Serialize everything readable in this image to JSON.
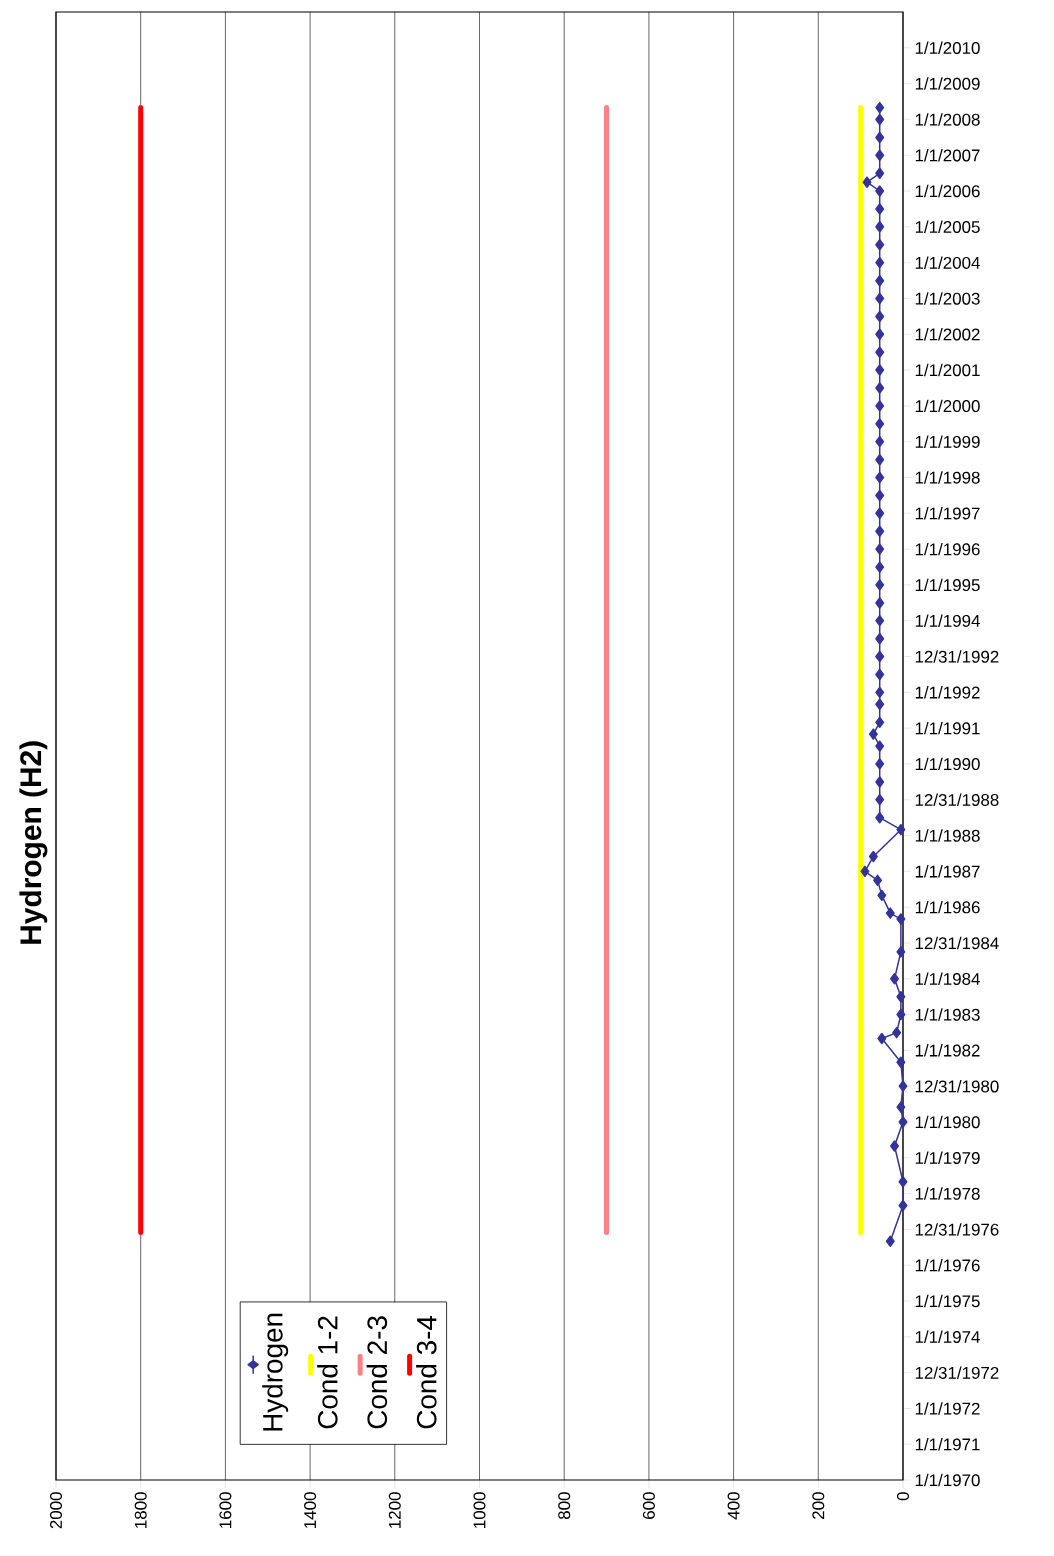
{
  "chart_data": {
    "type": "line",
    "title": "Hydrogen (H2)",
    "orientation": "horizontal",
    "ylim": [
      "1970-01-01",
      "2011-01-01"
    ],
    "xlim": [
      2000,
      0
    ],
    "xticks": [
      0,
      200,
      400,
      600,
      800,
      1000,
      1200,
      1400,
      1600,
      1800,
      2000
    ],
    "yticks": [
      {
        "value": "1970-01-01",
        "label": "1/1/1970"
      },
      {
        "value": "1971-01-01",
        "label": "1/1/1971"
      },
      {
        "value": "1972-01-01",
        "label": "1/1/1972"
      },
      {
        "value": "1972-12-31",
        "label": "12/31/1972"
      },
      {
        "value": "1974-01-01",
        "label": "1/1/1974"
      },
      {
        "value": "1975-01-01",
        "label": "1/1/1975"
      },
      {
        "value": "1976-01-01",
        "label": "1/1/1976"
      },
      {
        "value": "1976-12-31",
        "label": "12/31/1976"
      },
      {
        "value": "1978-01-01",
        "label": "1/1/1978"
      },
      {
        "value": "1979-01-01",
        "label": "1/1/1979"
      },
      {
        "value": "1980-01-01",
        "label": "1/1/1980"
      },
      {
        "value": "1980-12-31",
        "label": "12/31/1980"
      },
      {
        "value": "1982-01-01",
        "label": "1/1/1982"
      },
      {
        "value": "1983-01-01",
        "label": "1/1/1983"
      },
      {
        "value": "1984-01-01",
        "label": "1/1/1984"
      },
      {
        "value": "1984-12-31",
        "label": "12/31/1984"
      },
      {
        "value": "1986-01-01",
        "label": "1/1/1986"
      },
      {
        "value": "1987-01-01",
        "label": "1/1/1987"
      },
      {
        "value": "1988-01-01",
        "label": "1/1/1988"
      },
      {
        "value": "1988-12-31",
        "label": "12/31/1988"
      },
      {
        "value": "1990-01-01",
        "label": "1/1/1990"
      },
      {
        "value": "1991-01-01",
        "label": "1/1/1991"
      },
      {
        "value": "1992-01-01",
        "label": "1/1/1992"
      },
      {
        "value": "1992-12-31",
        "label": "12/31/1992"
      },
      {
        "value": "1994-01-01",
        "label": "1/1/1994"
      },
      {
        "value": "1995-01-01",
        "label": "1/1/1995"
      },
      {
        "value": "1996-01-01",
        "label": "1/1/1996"
      },
      {
        "value": "1997-01-01",
        "label": "1/1/1997"
      },
      {
        "value": "1998-01-01",
        "label": "1/1/1998"
      },
      {
        "value": "1999-01-01",
        "label": "1/1/1999"
      },
      {
        "value": "2000-01-01",
        "label": "1/1/2000"
      },
      {
        "value": "2001-01-01",
        "label": "1/1/2001"
      },
      {
        "value": "2002-01-01",
        "label": "1/1/2002"
      },
      {
        "value": "2003-01-01",
        "label": "1/1/2003"
      },
      {
        "value": "2004-01-01",
        "label": "1/1/2004"
      },
      {
        "value": "2005-01-01",
        "label": "1/1/2005"
      },
      {
        "value": "2006-01-01",
        "label": "1/1/2006"
      },
      {
        "value": "2007-01-01",
        "label": "1/1/2007"
      },
      {
        "value": "2008-01-01",
        "label": "1/1/2008"
      },
      {
        "value": "2009-01-01",
        "label": "1/1/2009"
      },
      {
        "value": "2010-01-01",
        "label": "1/1/2010"
      }
    ],
    "grid": "x",
    "legend": "bottom left",
    "series": [
      {
        "name": "Hydrogen",
        "color": "#333399",
        "marker": "diamond",
        "x": [
          "1976-09",
          "1977-09",
          "1978-05",
          "1979-05",
          "1980-01",
          "1980-06",
          "1981-01",
          "1981-09",
          "1982-05",
          "1982-07",
          "1983-01",
          "1983-07",
          "1984-01",
          "1984-10",
          "1985-09",
          "1985-11",
          "1986-05",
          "1986-10",
          "1987-01",
          "1987-06",
          "1988-03",
          "1988-07",
          "1989-01",
          "1989-07",
          "1990-01",
          "1990-07",
          "1990-11",
          "1991-03",
          "1991-09",
          "1992-01",
          "1992-07",
          "1993-01",
          "1993-07",
          "1994-01",
          "1994-07",
          "1995-01",
          "1995-07",
          "1996-01",
          "1996-07",
          "1997-01",
          "1997-07",
          "1998-01",
          "1998-07",
          "1999-01",
          "1999-07",
          "2000-01",
          "2000-07",
          "2001-01",
          "2001-07",
          "2002-01",
          "2002-07",
          "2003-01",
          "2003-07",
          "2004-01",
          "2004-07",
          "2005-01",
          "2005-07",
          "2006-01",
          "2006-04",
          "2006-07",
          "2007-01",
          "2007-07",
          "2008-01",
          "2008-05"
        ],
        "values": [
          30,
          0,
          0,
          20,
          0,
          5,
          0,
          5,
          50,
          15,
          5,
          5,
          20,
          5,
          5,
          30,
          50,
          60,
          90,
          70,
          5,
          55,
          55,
          55,
          55,
          55,
          70,
          55,
          55,
          55,
          55,
          55,
          55,
          55,
          55,
          55,
          55,
          55,
          55,
          55,
          55,
          55,
          55,
          55,
          55,
          55,
          55,
          55,
          55,
          55,
          55,
          55,
          55,
          55,
          55,
          55,
          55,
          55,
          85,
          55,
          55,
          55,
          55,
          55
        ]
      },
      {
        "name": "Cond 1-2",
        "color": "#ffff00",
        "marker": "none",
        "x": [
          "1976-12",
          "2008-05"
        ],
        "values": [
          100,
          100
        ]
      },
      {
        "name": "Cond 2-3",
        "color": "#ff8080",
        "marker": "none",
        "x": [
          "1976-12",
          "2008-05"
        ],
        "values": [
          700,
          700
        ]
      },
      {
        "name": "Cond 3-4",
        "color": "#ff0000",
        "marker": "none",
        "x": [
          "1976-12",
          "2008-05"
        ],
        "values": [
          1800,
          1800
        ]
      }
    ]
  }
}
